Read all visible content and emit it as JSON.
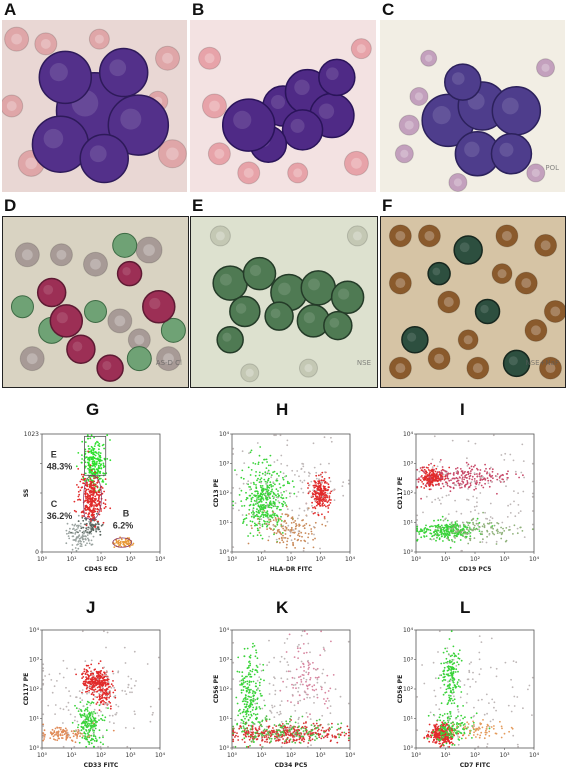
{
  "figure": {
    "micrograph_panels": [
      {
        "id": "A",
        "bg": "#e9d7d4",
        "cell": "#53308a",
        "cell_edge": "#2e1a5a",
        "rbc": "#dfa6a8",
        "cells": [
          [
            95,
            95,
            38
          ],
          [
            65,
            60,
            26
          ],
          [
            125,
            55,
            24
          ],
          [
            140,
            110,
            30
          ],
          [
            60,
            130,
            28
          ],
          [
            105,
            145,
            24
          ]
        ],
        "rbcs": [
          [
            15,
            20,
            12
          ],
          [
            30,
            150,
            13
          ],
          [
            170,
            40,
            12
          ],
          [
            175,
            140,
            14
          ],
          [
            10,
            90,
            11
          ],
          [
            160,
            85,
            10
          ],
          [
            45,
            25,
            11
          ],
          [
            100,
            20,
            10
          ]
        ],
        "watermark": ""
      },
      {
        "id": "B",
        "bg": "#f3e2e2",
        "cell": "#4f2a86",
        "cell_edge": "#2a145a",
        "rbc": "#e7a3a9",
        "cells": [
          [
            95,
            90,
            20
          ],
          [
            120,
            75,
            22
          ],
          [
            145,
            100,
            22
          ],
          [
            115,
            115,
            20
          ],
          [
            80,
            130,
            18
          ],
          [
            150,
            60,
            18
          ],
          [
            60,
            110,
            26
          ]
        ],
        "rbcs": [
          [
            20,
            40,
            11
          ],
          [
            25,
            90,
            12
          ],
          [
            30,
            140,
            11
          ],
          [
            170,
            150,
            12
          ],
          [
            175,
            30,
            10
          ],
          [
            60,
            160,
            11
          ],
          [
            110,
            160,
            10
          ]
        ],
        "watermark": ""
      },
      {
        "id": "C",
        "bg": "#f2eee4",
        "cell": "#4e3d8c",
        "cell_edge": "#2c215c",
        "rbc": "#c3a0bd",
        "cells": [
          [
            70,
            105,
            26
          ],
          [
            105,
            90,
            24
          ],
          [
            140,
            95,
            24
          ],
          [
            100,
            140,
            22
          ],
          [
            135,
            140,
            20
          ],
          [
            85,
            65,
            18
          ]
        ],
        "rbcs": [
          [
            30,
            110,
            10
          ],
          [
            40,
            80,
            9
          ],
          [
            25,
            140,
            9
          ],
          [
            160,
            160,
            9
          ],
          [
            170,
            50,
            9
          ],
          [
            50,
            40,
            8
          ],
          [
            80,
            170,
            9
          ]
        ],
        "watermark": "POL"
      },
      {
        "id": "D",
        "bg": "#d9d3c2",
        "cell": "#9c2f55",
        "cell_edge": "#5e1a33",
        "rbc": "#a79a96",
        "cells": [
          [
            65,
            110,
            16
          ],
          [
            80,
            140,
            14
          ],
          [
            130,
            60,
            12
          ],
          [
            160,
            95,
            16
          ],
          [
            50,
            80,
            14
          ],
          [
            110,
            160,
            13
          ]
        ],
        "rbcs": [
          [
            25,
            40,
            12
          ],
          [
            95,
            50,
            12
          ],
          [
            150,
            35,
            13
          ],
          [
            170,
            150,
            12
          ],
          [
            30,
            150,
            12
          ],
          [
            120,
            110,
            12
          ],
          [
            60,
            40,
            11
          ],
          [
            140,
            130,
            11
          ]
        ],
        "green": [
          [
            125,
            30,
            12
          ],
          [
            50,
            120,
            13
          ],
          [
            140,
            150,
            12
          ],
          [
            175,
            120,
            12
          ],
          [
            95,
            100,
            11
          ],
          [
            20,
            95,
            11
          ]
        ],
        "watermark": "AS-D Cl"
      },
      {
        "id": "E",
        "bg": "#dde1cf",
        "cell": "#4f7a53",
        "cell_edge": "#243b28",
        "rbc": "#c4c8b4",
        "cells": [
          [
            40,
            70,
            17
          ],
          [
            70,
            60,
            16
          ],
          [
            100,
            80,
            18
          ],
          [
            130,
            75,
            17
          ],
          [
            160,
            85,
            16
          ],
          [
            55,
            100,
            15
          ],
          [
            90,
            105,
            14
          ],
          [
            125,
            110,
            16
          ],
          [
            150,
            115,
            14
          ],
          [
            40,
            130,
            13
          ]
        ],
        "rbcs": [
          [
            30,
            20,
            10
          ],
          [
            170,
            20,
            10
          ],
          [
            120,
            160,
            9
          ],
          [
            60,
            165,
            9
          ]
        ],
        "green": [],
        "watermark": "NSE"
      },
      {
        "id": "F",
        "bg": "#d6c4a5",
        "cell": "#2d4f3f",
        "cell_edge": "#17281f",
        "rbc": "#8a5a2c",
        "cells": [
          [
            90,
            35,
            14
          ],
          [
            35,
            130,
            13
          ],
          [
            110,
            100,
            12
          ],
          [
            140,
            155,
            13
          ],
          [
            60,
            60,
            11
          ]
        ],
        "rbcs": [
          [
            20,
            20,
            11
          ],
          [
            50,
            20,
            11
          ],
          [
            130,
            20,
            11
          ],
          [
            170,
            30,
            11
          ],
          [
            20,
            70,
            11
          ],
          [
            70,
            90,
            11
          ],
          [
            150,
            70,
            11
          ],
          [
            180,
            100,
            11
          ],
          [
            20,
            160,
            11
          ],
          [
            60,
            150,
            11
          ],
          [
            100,
            160,
            11
          ],
          [
            175,
            160,
            11
          ],
          [
            125,
            60,
            10
          ],
          [
            160,
            120,
            11
          ],
          [
            90,
            130,
            10
          ]
        ],
        "green": [],
        "watermark": "NSE+NaF"
      }
    ],
    "flow_panels": [
      {
        "id": "G",
        "xlabel": "CD45 ECD",
        "ylabel": "SS",
        "xticks": [
          "10⁰",
          "10¹",
          "10²",
          "10³",
          "10⁴"
        ],
        "yticks": [
          "1023",
          "",
          "",
          "",
          "0"
        ],
        "yticks_linear": true,
        "populations": [
          {
            "cx": 0.33,
            "cy": 0.85,
            "sx": 0.06,
            "sy": 0.06,
            "n": 110,
            "color": "#9aa3a0"
          },
          {
            "cx": 0.42,
            "cy": 0.78,
            "sx": 0.05,
            "sy": 0.05,
            "n": 70,
            "color": "#5a6660"
          },
          {
            "cx": 0.44,
            "cy": 0.25,
            "sx": 0.05,
            "sy": 0.1,
            "n": 260,
            "color": "#2ee02e"
          },
          {
            "cx": 0.42,
            "cy": 0.55,
            "sx": 0.05,
            "sy": 0.1,
            "n": 320,
            "color": "#e12b2b"
          },
          {
            "cx": 0.68,
            "cy": 0.92,
            "sx": 0.04,
            "sy": 0.02,
            "n": 70,
            "color": "#e89a3a"
          }
        ],
        "gates": [
          "E",
          "C",
          "B"
        ],
        "gate_labels": [
          "E\n48.3%",
          "C\n36.2%",
          "B\n6.2%"
        ]
      },
      {
        "id": "H",
        "xlabel": "HLA-DR FITC",
        "ylabel": "CD13 PE",
        "xticks": [
          "10⁰",
          "10¹",
          "10²",
          "10³",
          "10⁴"
        ],
        "yticks": [
          "10⁴",
          "10³",
          "10²",
          "10¹",
          "10⁰"
        ],
        "populations": [
          {
            "cx": 0.28,
            "cy": 0.55,
            "sx": 0.09,
            "sy": 0.14,
            "n": 400,
            "color": "#3ad33a"
          },
          {
            "cx": 0.75,
            "cy": 0.5,
            "sx": 0.04,
            "sy": 0.07,
            "n": 220,
            "color": "#e12b2b"
          },
          {
            "cx": 0.45,
            "cy": 0.8,
            "sx": 0.12,
            "sy": 0.08,
            "n": 140,
            "color": "#c98a5a"
          },
          {
            "cx": 0.5,
            "cy": 0.5,
            "sx": 0.25,
            "sy": 0.25,
            "n": 140,
            "color": "#bdb6b6"
          }
        ]
      },
      {
        "id": "I",
        "xlabel": "CD19 PC5",
        "ylabel": "CD117 PE",
        "xticks": [
          "10⁰",
          "10¹",
          "10²",
          "10³",
          "10⁴"
        ],
        "yticks": [
          "10⁴",
          "10³",
          "10²",
          "10¹",
          "10⁰"
        ],
        "populations": [
          {
            "cx": 0.14,
            "cy": 0.37,
            "sx": 0.05,
            "sy": 0.04,
            "n": 200,
            "color": "#e12b2b"
          },
          {
            "cx": 0.4,
            "cy": 0.37,
            "sx": 0.18,
            "sy": 0.05,
            "n": 220,
            "color": "#c84a6a"
          },
          {
            "cx": 0.25,
            "cy": 0.82,
            "sx": 0.12,
            "sy": 0.04,
            "n": 260,
            "color": "#3ad33a"
          },
          {
            "cx": 0.55,
            "cy": 0.82,
            "sx": 0.2,
            "sy": 0.05,
            "n": 120,
            "color": "#8fb17a"
          },
          {
            "cx": 0.5,
            "cy": 0.55,
            "sx": 0.25,
            "sy": 0.25,
            "n": 120,
            "color": "#bdb6b6"
          }
        ]
      },
      {
        "id": "J",
        "xlabel": "CD33 FITC",
        "ylabel": "CD117 PE",
        "xticks": [
          "10⁰",
          "10¹",
          "10²",
          "10³",
          "10⁴"
        ],
        "yticks": [
          "10⁴",
          "10³",
          "10²",
          "10¹",
          "10⁰"
        ],
        "populations": [
          {
            "cx": 0.46,
            "cy": 0.42,
            "sx": 0.06,
            "sy": 0.05,
            "n": 260,
            "color": "#e12b2b"
          },
          {
            "cx": 0.53,
            "cy": 0.55,
            "sx": 0.04,
            "sy": 0.06,
            "n": 90,
            "color": "#e12b2b"
          },
          {
            "cx": 0.4,
            "cy": 0.8,
            "sx": 0.05,
            "sy": 0.08,
            "n": 200,
            "color": "#3ad33a"
          },
          {
            "cx": 0.18,
            "cy": 0.88,
            "sx": 0.1,
            "sy": 0.03,
            "n": 110,
            "color": "#e08b58"
          },
          {
            "cx": 0.45,
            "cy": 0.55,
            "sx": 0.25,
            "sy": 0.22,
            "n": 140,
            "color": "#bdb6b6"
          }
        ]
      },
      {
        "id": "K",
        "xlabel": "CD34 PC5",
        "ylabel": "CD56 PE",
        "xticks": [
          "10⁰",
          "10¹",
          "10²",
          "10³",
          "10⁴"
        ],
        "yticks": [
          "10⁴",
          "10³",
          "10²",
          "10¹",
          "10⁰"
        ],
        "populations": [
          {
            "cx": 0.15,
            "cy": 0.55,
            "sx": 0.05,
            "sy": 0.18,
            "n": 220,
            "color": "#3ad33a"
          },
          {
            "cx": 0.45,
            "cy": 0.88,
            "sx": 0.25,
            "sy": 0.04,
            "n": 360,
            "color": "#d83434"
          },
          {
            "cx": 0.4,
            "cy": 0.85,
            "sx": 0.25,
            "sy": 0.05,
            "n": 160,
            "color": "#52c04a"
          },
          {
            "cx": 0.65,
            "cy": 0.4,
            "sx": 0.1,
            "sy": 0.15,
            "n": 90,
            "color": "#d786a0"
          },
          {
            "cx": 0.5,
            "cy": 0.55,
            "sx": 0.25,
            "sy": 0.25,
            "n": 120,
            "color": "#bdb6b6"
          }
        ]
      },
      {
        "id": "L",
        "xlabel": "CD7 FITC",
        "ylabel": "CD56 PE",
        "xticks": [
          "10⁰",
          "10¹",
          "10²",
          "10³",
          "10⁴"
        ],
        "yticks": [
          "10⁴",
          "10³",
          "10²",
          "10¹",
          "10⁰"
        ],
        "populations": [
          {
            "cx": 0.3,
            "cy": 0.4,
            "sx": 0.04,
            "sy": 0.14,
            "n": 160,
            "color": "#3ad33a"
          },
          {
            "cx": 0.22,
            "cy": 0.88,
            "sx": 0.05,
            "sy": 0.04,
            "n": 300,
            "color": "#e12b2b"
          },
          {
            "cx": 0.3,
            "cy": 0.83,
            "sx": 0.09,
            "sy": 0.06,
            "n": 140,
            "color": "#3ad33a"
          },
          {
            "cx": 0.55,
            "cy": 0.85,
            "sx": 0.12,
            "sy": 0.04,
            "n": 70,
            "color": "#e49b5c"
          },
          {
            "cx": 0.5,
            "cy": 0.55,
            "sx": 0.25,
            "sy": 0.25,
            "n": 100,
            "color": "#bdb6b6"
          }
        ]
      }
    ]
  },
  "labels": {
    "A": "A",
    "B": "B",
    "C": "C",
    "D": "D",
    "E": "E",
    "F": "F",
    "G": "G",
    "H": "H",
    "I": "I",
    "J": "J",
    "K": "K",
    "L": "L"
  },
  "gate_text": {
    "E": "E",
    "E_pct": "48.3%",
    "C": "C",
    "C_pct": "36.2%",
    "B": "B",
    "B_pct": "6.2%"
  },
  "watermarks": {
    "C": "POL",
    "D": "AS-D Cl",
    "E": "NSE",
    "F": "NSE+NaF"
  },
  "axes": {
    "G": {
      "x": "CD45 ECD",
      "y": "SS"
    },
    "H": {
      "x": "HLA-DR FITC",
      "y": "CD13 PE"
    },
    "I": {
      "x": "CD19 PC5",
      "y": "CD117 PE"
    },
    "J": {
      "x": "CD33 FITC",
      "y": "CD117 PE"
    },
    "K": {
      "x": "CD34 PC5",
      "y": "CD56 PE"
    },
    "L": {
      "x": "CD7 FITC",
      "y": "CD56 PE"
    }
  }
}
